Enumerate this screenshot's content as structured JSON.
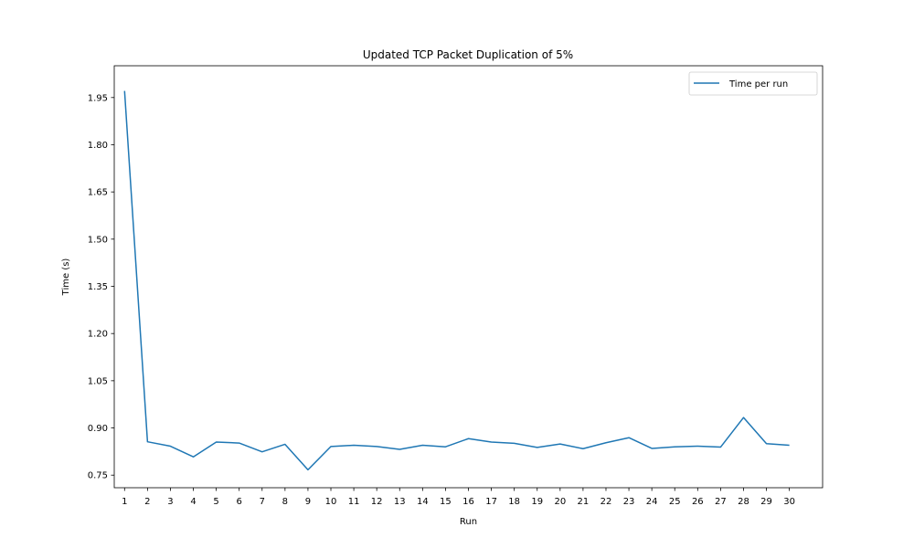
{
  "chart_data": {
    "type": "line",
    "title": "Updated TCP Packet Duplication of 5%",
    "xlabel": "Run",
    "ylabel": "Time (s)",
    "categories": [
      "1",
      "2",
      "3",
      "4",
      "5",
      "6",
      "7",
      "8",
      "9",
      "10",
      "11",
      "12",
      "13",
      "14",
      "15",
      "16",
      "17",
      "18",
      "19",
      "20",
      "21",
      "22",
      "23",
      "24",
      "25",
      "26",
      "27",
      "28",
      "29",
      "30"
    ],
    "xlim": [
      -0.45,
      30.45
    ],
    "ylim": [
      0.71,
      2.051
    ],
    "yticks": [
      0.75,
      0.9,
      1.05,
      1.2,
      1.35,
      1.5,
      1.65,
      1.8,
      1.95
    ],
    "ytick_labels": [
      "0.75",
      "0.90",
      "1.05",
      "1.20",
      "1.35",
      "1.50",
      "1.65",
      "1.80",
      "1.95"
    ],
    "series": [
      {
        "name": "Time per run",
        "color": "#1f77b4",
        "values": [
          1.971,
          0.856,
          0.842,
          0.808,
          0.855,
          0.852,
          0.824,
          0.848,
          0.767,
          0.841,
          0.845,
          0.841,
          0.832,
          0.845,
          0.84,
          0.866,
          0.855,
          0.851,
          0.838,
          0.849,
          0.834,
          0.853,
          0.869,
          0.835,
          0.84,
          0.842,
          0.839,
          0.933,
          0.85,
          0.845
        ]
      }
    ],
    "legend": {
      "position": "upper-right"
    },
    "grid": false
  }
}
